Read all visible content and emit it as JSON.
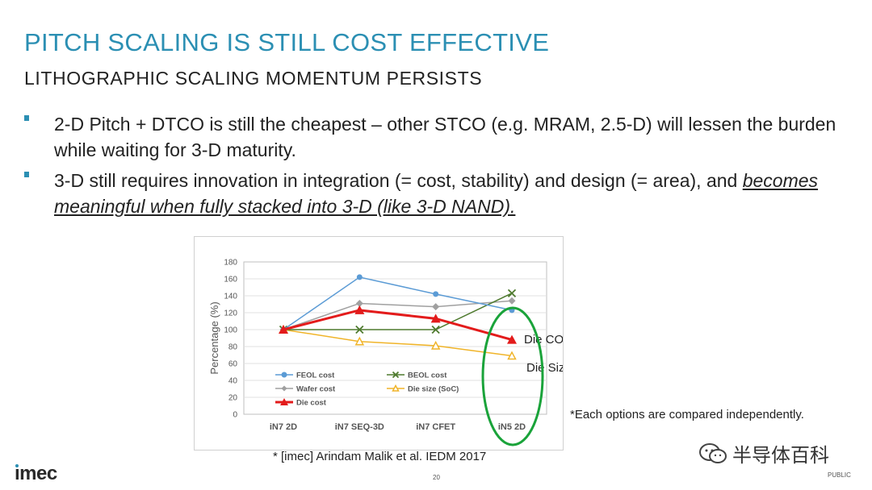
{
  "slide": {
    "title": "PITCH SCALING IS STILL COST EFFECTIVE",
    "subtitle": "LITHOGRAPHIC SCALING MOMENTUM PERSISTS",
    "bullets": [
      {
        "text": "2-D Pitch + DTCO is still the cheapest – other STCO (e.g. MRAM, 2.5-D) will lessen the burden while waiting for 3-D maturity."
      },
      {
        "text": "3-D still requires innovation in integration (= cost, stability) and design (= area), and",
        "emphasis": "becomes meaningful when fully stacked into 3-D (like 3-D NAND)."
      }
    ],
    "note": "*Each options are compared independently.",
    "citation": "* [imec] Arindam Malik et al. IEDM 2017",
    "page_number": "20",
    "logo": "ımec",
    "watermark": "半导体百科",
    "classification": "PUBLIC"
  },
  "chart_data": {
    "type": "line",
    "categories": [
      "iN7 2D",
      "iN7 SEQ-3D",
      "iN7 CFET",
      "iN5 2D"
    ],
    "ylabel": "Percentage (%)",
    "ylim": [
      0,
      180
    ],
    "yticks": [
      "0",
      "20",
      "40",
      "60",
      "80",
      "100",
      "120",
      "140",
      "160",
      "180"
    ],
    "grid": true,
    "legend_position": "bottom-left",
    "series": [
      {
        "name": "FEOL cost",
        "values": [
          100,
          162,
          142,
          123
        ],
        "color": "#5b9bd5",
        "marker": "circle"
      },
      {
        "name": "BEOL cost",
        "values": [
          100,
          100,
          100,
          143
        ],
        "color": "#4e7a2e",
        "marker": "x"
      },
      {
        "name": "Wafer cost",
        "values": [
          100,
          131,
          127,
          134
        ],
        "color": "#a0a0a0",
        "marker": "diamond"
      },
      {
        "name": "Die size (SoC)",
        "values": [
          100,
          86,
          81,
          69
        ],
        "color": "#f0b429",
        "marker": "open-triangle"
      },
      {
        "name": "Die cost",
        "values": [
          100,
          123,
          113,
          88
        ],
        "color": "#e31b1b",
        "marker": "triangle"
      }
    ],
    "annotations": [
      "Die COST",
      "Die Size"
    ],
    "highlight_color": "#1aa33a"
  }
}
